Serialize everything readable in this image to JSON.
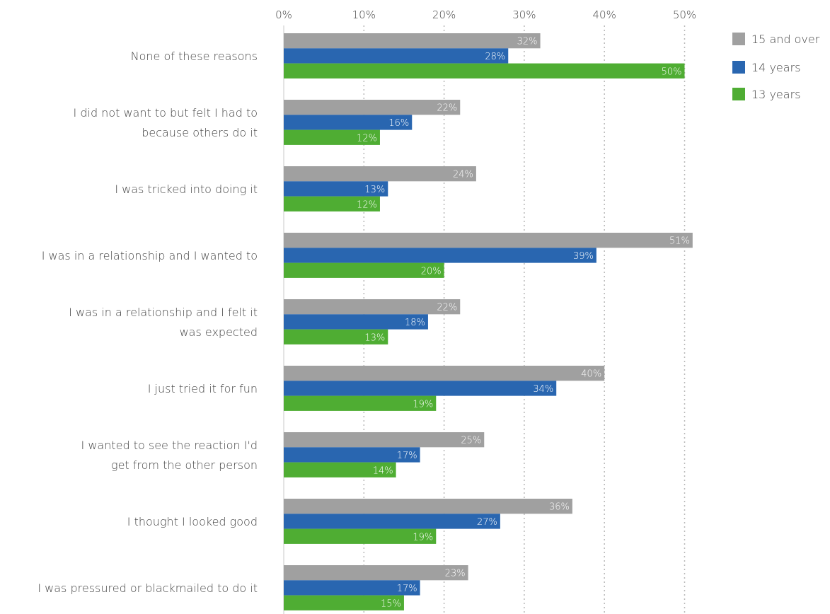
{
  "chart_data": {
    "type": "bar",
    "orientation": "horizontal",
    "title": "",
    "xlabel": "",
    "ylabel": "",
    "xlim": [
      0,
      50
    ],
    "x_ticks": [
      "0%",
      "10%",
      "20%",
      "30%",
      "40%",
      "50%"
    ],
    "x_tick_values": [
      0,
      10,
      20,
      30,
      40,
      50
    ],
    "grid": "vertical dotted",
    "legend_position": "top-right",
    "categories": [
      [
        "None of these reasons"
      ],
      [
        "I did not want to but felt I had to",
        "because others do it"
      ],
      [
        "I was tricked into doing it"
      ],
      [
        "I was in a relationship and I wanted to"
      ],
      [
        "I was in a relationship and I felt it",
        "was expected"
      ],
      [
        "I just tried it for fun"
      ],
      [
        "I wanted to see the reaction I'd",
        "get from the other person"
      ],
      [
        "I thought I looked good"
      ],
      [
        "I was pressured or blackmailed to do it"
      ]
    ],
    "series": [
      {
        "name": "15 and over",
        "color": "#a0a0a0",
        "values": [
          32,
          22,
          24,
          51,
          22,
          40,
          25,
          36,
          23
        ]
      },
      {
        "name": "14 years",
        "color": "#2966b0",
        "values": [
          28,
          16,
          13,
          39,
          18,
          34,
          17,
          27,
          17
        ]
      },
      {
        "name": "13 years",
        "color": "#4fad33",
        "values": [
          50,
          12,
          12,
          20,
          13,
          19,
          14,
          19,
          15
        ]
      }
    ],
    "value_suffix": "%"
  }
}
